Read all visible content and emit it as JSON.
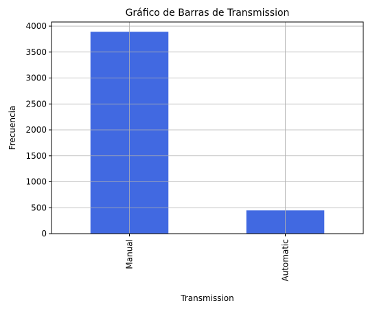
{
  "chart_data": {
    "type": "bar",
    "title": "Gráfico de Barras de Transmission",
    "xlabel": "Transmission",
    "ylabel": "Frecuencia",
    "categories": [
      "Manual",
      "Automatic"
    ],
    "values": [
      3892,
      448
    ],
    "ylim": [
      0,
      4080
    ],
    "yticks": [
      0,
      500,
      1000,
      1500,
      2000,
      2500,
      3000,
      3500,
      4000
    ],
    "grid": true,
    "bar_color": "#4169e1",
    "grid_color": "#b0b0b0",
    "tick_label_rotation": 90
  }
}
